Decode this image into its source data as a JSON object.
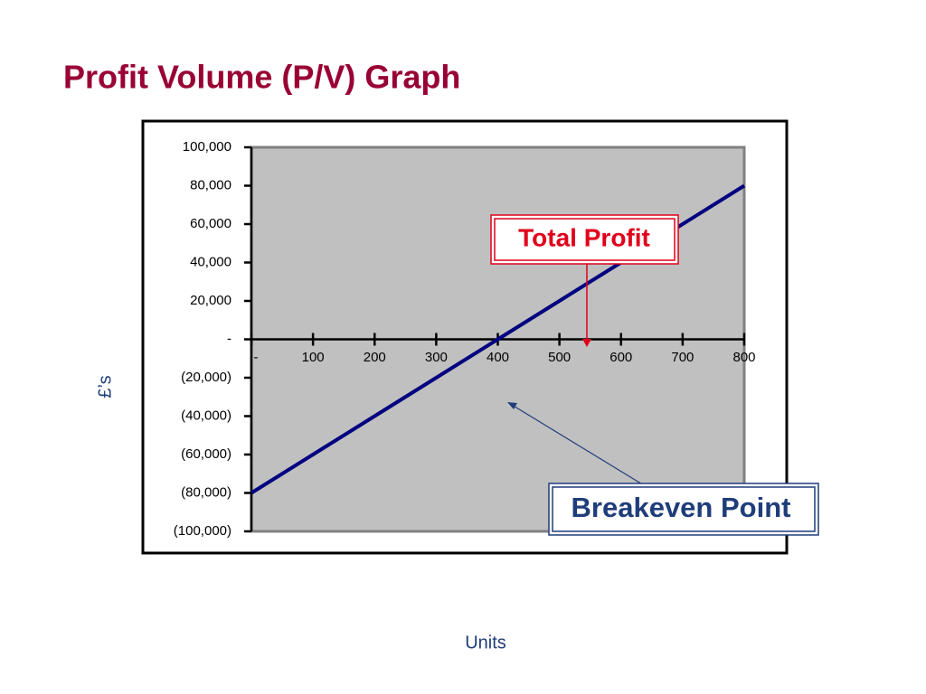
{
  "chart_data": {
    "type": "line",
    "title": "Profit Volume (P/V) Graph",
    "y_label": "£’s",
    "x_label": "Units",
    "annotations": [
      "Total Profit",
      "Breakeven Point"
    ],
    "x": [
      0,
      100,
      200,
      300,
      400,
      500,
      600,
      700,
      800
    ],
    "values": [
      -80000,
      -60000,
      -40000,
      -20000,
      0,
      20000,
      40000,
      60000,
      80000
    ],
    "color": "#000080",
    "xlim": [
      0,
      800
    ],
    "xticks": [
      {
        "value": 0,
        "label": "-"
      },
      100,
      200,
      300,
      400,
      500,
      600,
      700,
      800
    ],
    "ylim": [
      -100000,
      100000
    ],
    "yticks": [
      {
        "value": 100000,
        "label": "100,000"
      },
      {
        "value": 80000,
        "label": "80,000"
      },
      {
        "value": 60000,
        "label": "60,000"
      },
      {
        "value": 40000,
        "label": "40,000"
      },
      {
        "value": 20000,
        "label": "20,000"
      },
      {
        "value": 0,
        "label": "-"
      },
      {
        "value": -20000,
        "label": "(20,000)"
      },
      {
        "value": -40000,
        "label": "(40,000)"
      },
      {
        "value": -60000,
        "label": "(60,000)"
      },
      {
        "value": -80000,
        "label": "(80,000)"
      },
      {
        "value": -100000,
        "label": "(100,000)"
      }
    ],
    "grid": false
  }
}
